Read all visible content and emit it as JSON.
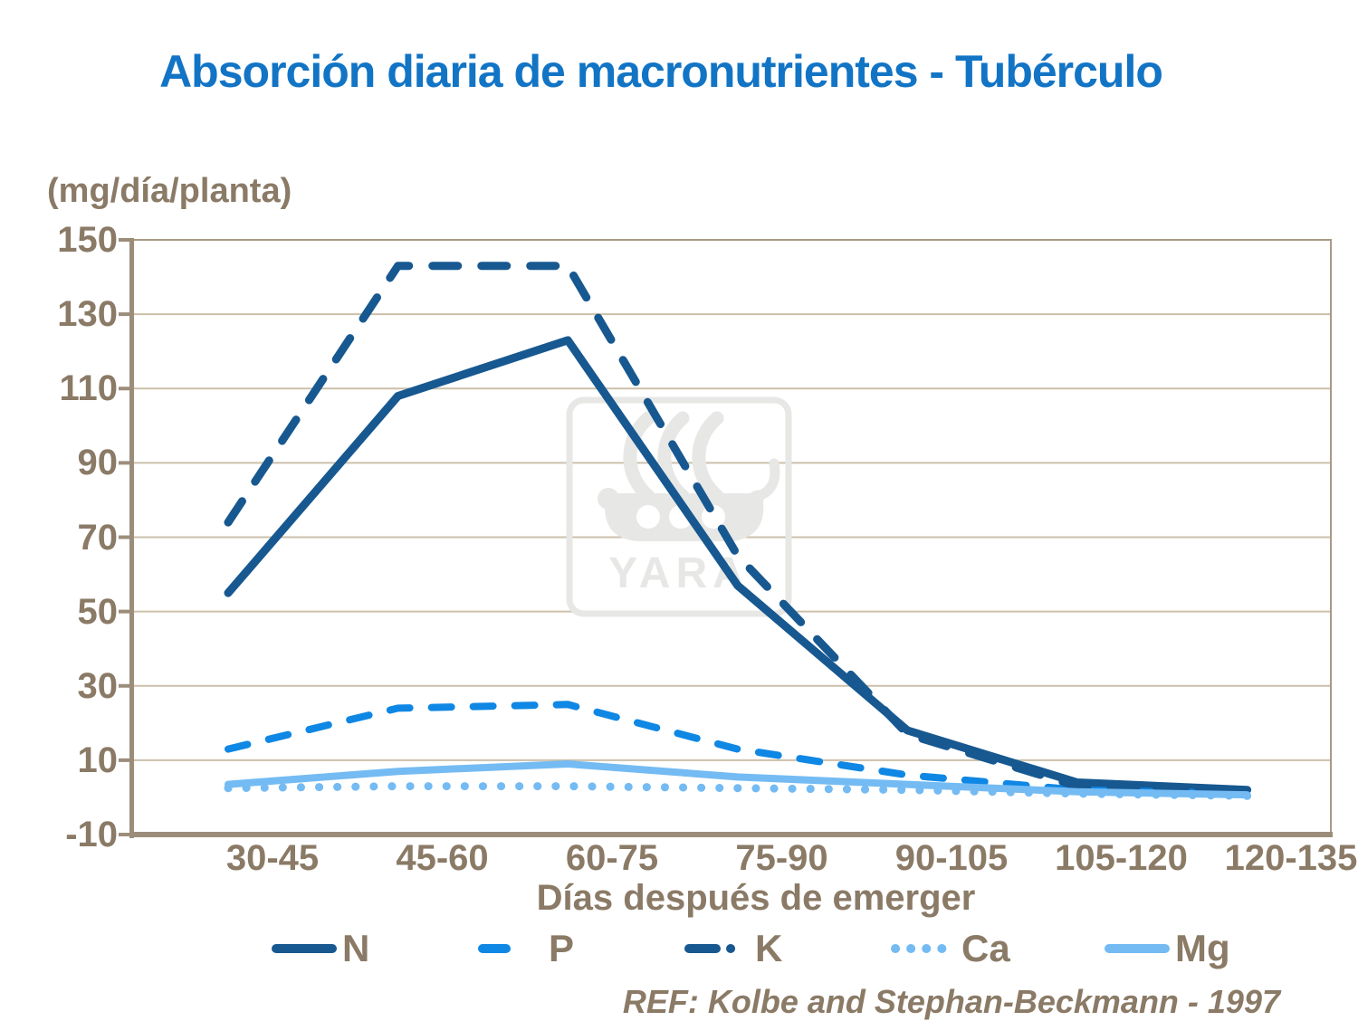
{
  "title": "Absorción diaria de macronutrientes - Tubérculo",
  "y_axis_unit": "(mg/día/planta)",
  "x_axis_title": "Días después de emerger",
  "reference": "REF: Kolbe and Stephan-Beckmann - 1997",
  "watermark_text": "YARA",
  "colors": {
    "title": "#1274C5",
    "axis_text": "#8A7A66",
    "grid": "#CCC0AB",
    "axis_line": "#9C8D7B",
    "plot_border": "#A89A82",
    "dark_blue": "#175890",
    "azure": "#0F87E4",
    "light_blue": "#74BBF3",
    "watermark": "#E7E7E5"
  },
  "chart_data": {
    "type": "line",
    "title": "Absorción diaria de macronutrientes - Tubérculo",
    "xlabel": "Días después de emerger",
    "ylabel": "(mg/día/planta)",
    "categories": [
      "30-45",
      "45-60",
      "60-75",
      "75-90",
      "90-105",
      "105-120",
      "120-135"
    ],
    "series": [
      {
        "name": "N",
        "values": [
          55,
          108,
          123,
          57,
          18,
          4,
          2
        ],
        "color": "#175890",
        "style": "solid",
        "width": 9
      },
      {
        "name": "P",
        "values": [
          13,
          24,
          25,
          13,
          6,
          2,
          1
        ],
        "color": "#0F87E4",
        "style": "dash",
        "width": 8
      },
      {
        "name": "K",
        "values": [
          74,
          143,
          143,
          65,
          17,
          3,
          1.5
        ],
        "color": "#175890",
        "style": "long-dash",
        "width": 9
      },
      {
        "name": "Ca",
        "values": [
          2.5,
          3,
          3,
          2.5,
          2,
          1,
          0.4
        ],
        "color": "#74BBF3",
        "style": "dot",
        "width": 9
      },
      {
        "name": "Mg",
        "values": [
          3.5,
          7,
          9,
          5.5,
          3.5,
          1.5,
          0.7
        ],
        "color": "#74BBF3",
        "style": "solid",
        "width": 8
      }
    ],
    "ylim": [
      -10,
      150
    ],
    "yticks": [
      150,
      130,
      110,
      90,
      70,
      50,
      30,
      10,
      -10
    ],
    "grid": true,
    "legend_position": "bottom"
  }
}
